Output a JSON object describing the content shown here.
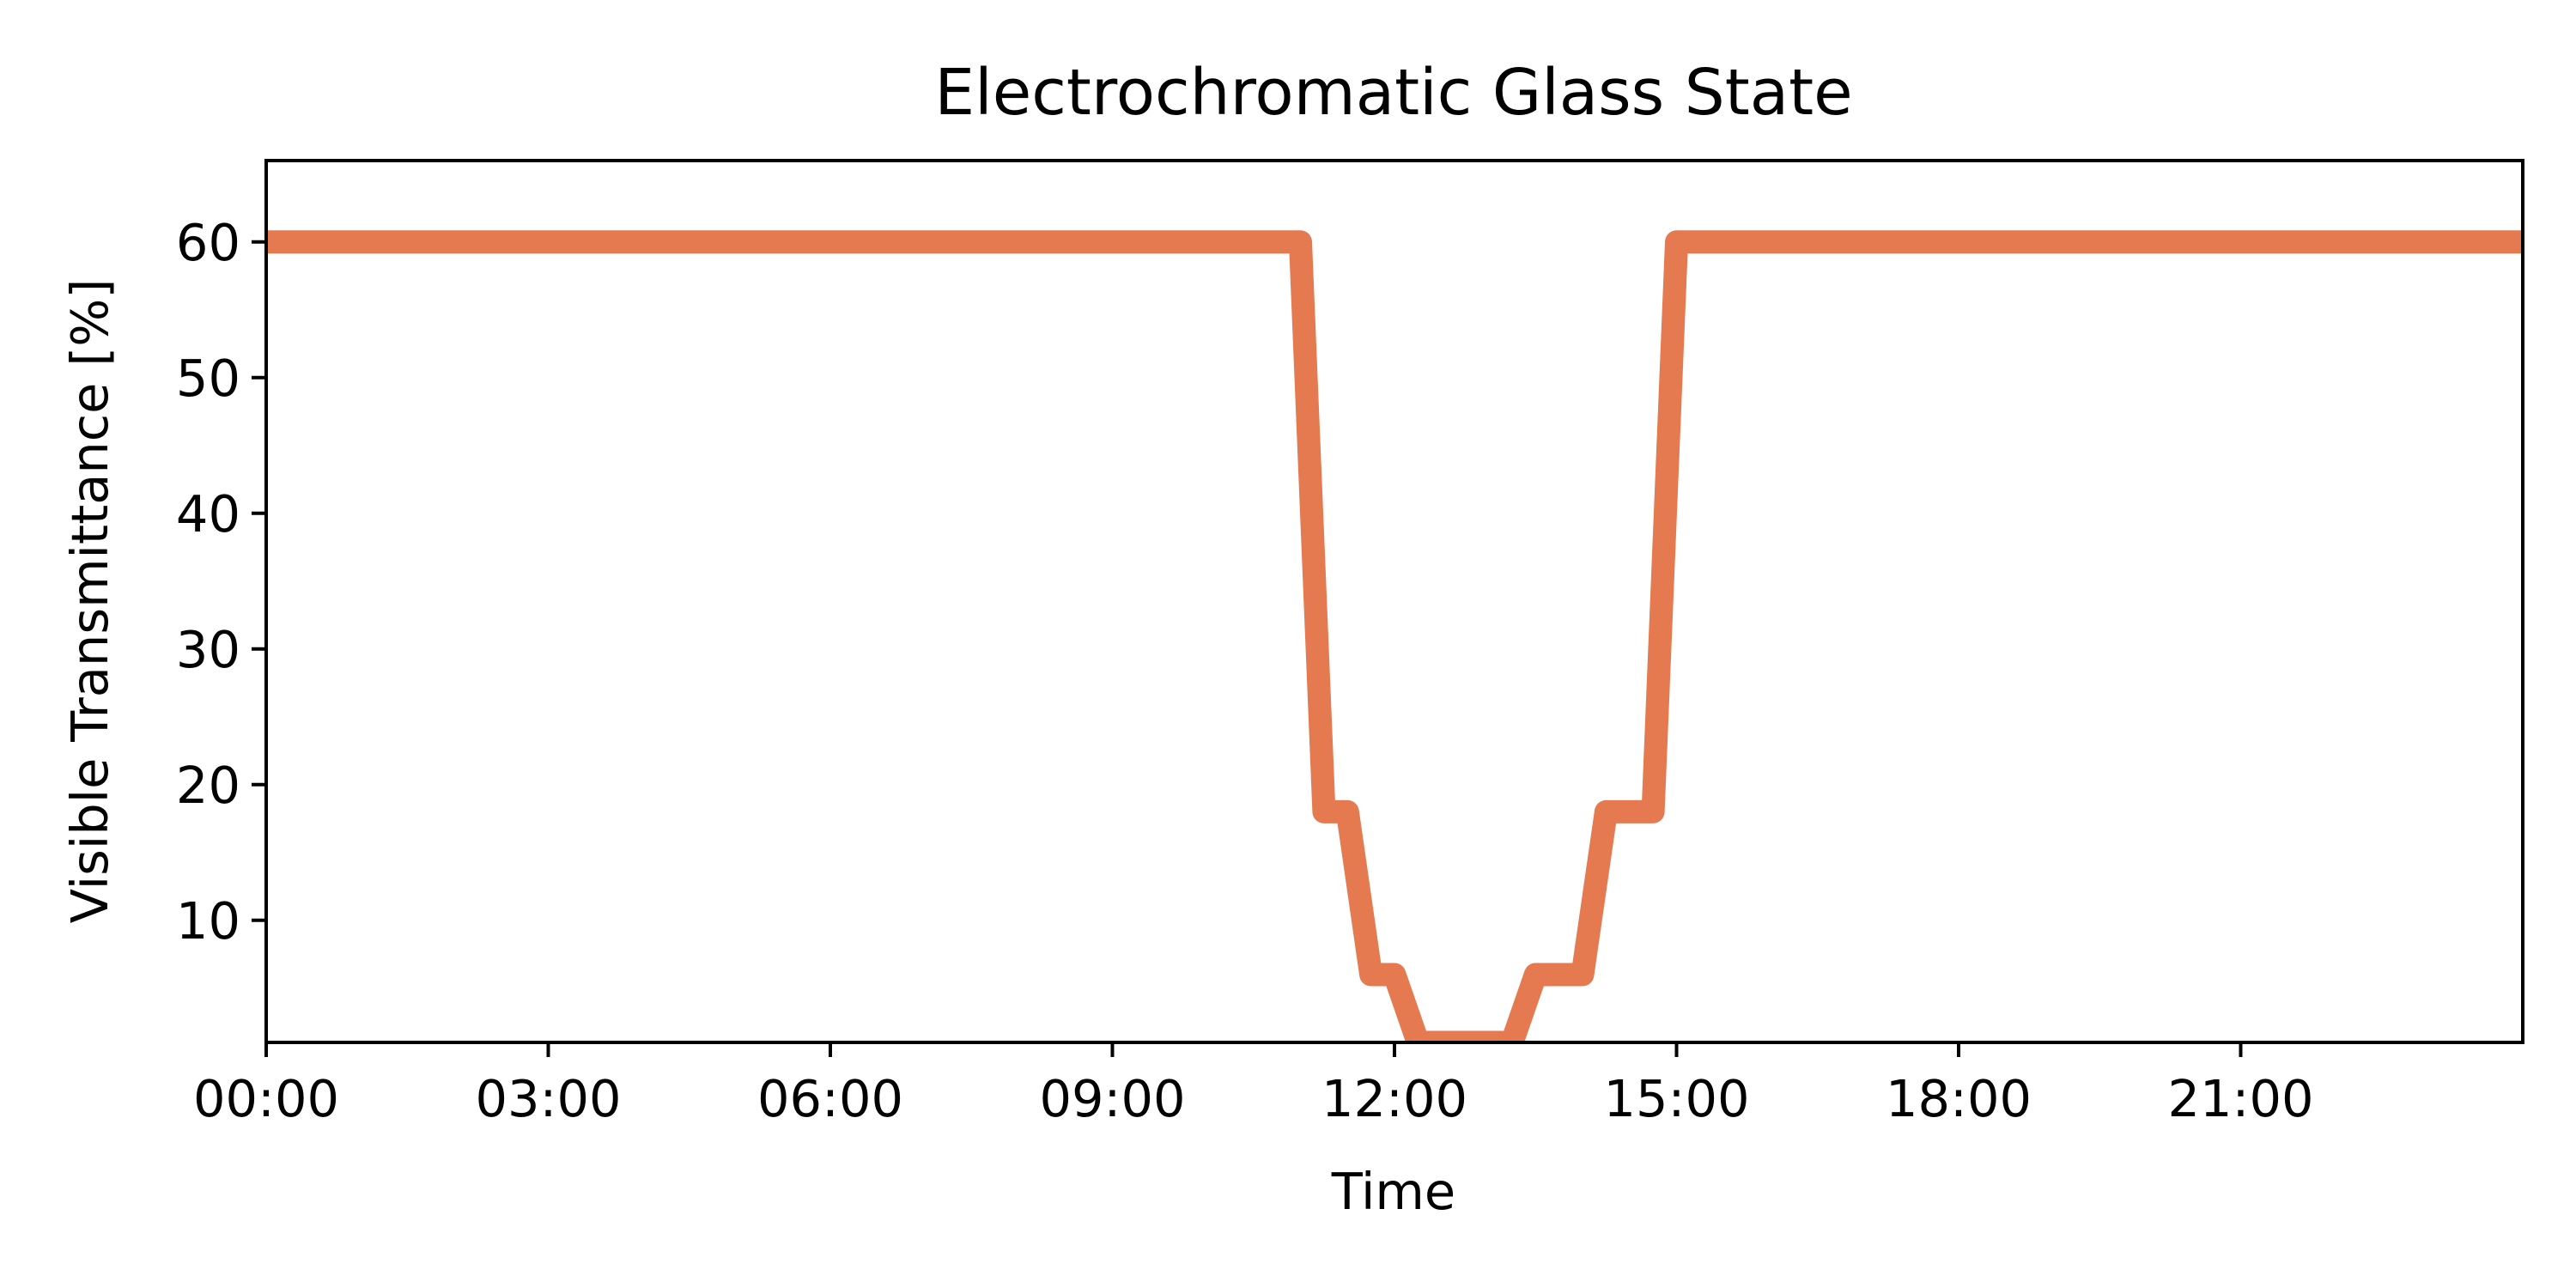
{
  "chart_data": {
    "type": "line",
    "title": "Electrochromatic Glass State",
    "xlabel": "Time",
    "ylabel": "Visible Transmittance [%]",
    "x_unit": "hours",
    "xlim": [
      "00:00",
      "24:00"
    ],
    "ylim": [
      1,
      66
    ],
    "xticks": [
      "00:00",
      "03:00",
      "06:00",
      "09:00",
      "12:00",
      "15:00",
      "18:00",
      "21:00"
    ],
    "yticks": [
      10,
      20,
      30,
      40,
      50,
      60
    ],
    "grid": false,
    "legend": "none",
    "series": [
      {
        "color": "#e57950",
        "x": [
          "00:00",
          "11:00",
          "11:15",
          "11:30",
          "11:45",
          "12:00",
          "12:15",
          "12:30",
          "12:45",
          "13:00",
          "13:15",
          "13:30",
          "13:45",
          "14:00",
          "14:15",
          "14:30",
          "14:45",
          "15:00",
          "24:00"
        ],
        "y": [
          60,
          60,
          18,
          18,
          6,
          6,
          1,
          1,
          1,
          1,
          1,
          6,
          6,
          6,
          18,
          18,
          18,
          60,
          60
        ]
      }
    ]
  }
}
